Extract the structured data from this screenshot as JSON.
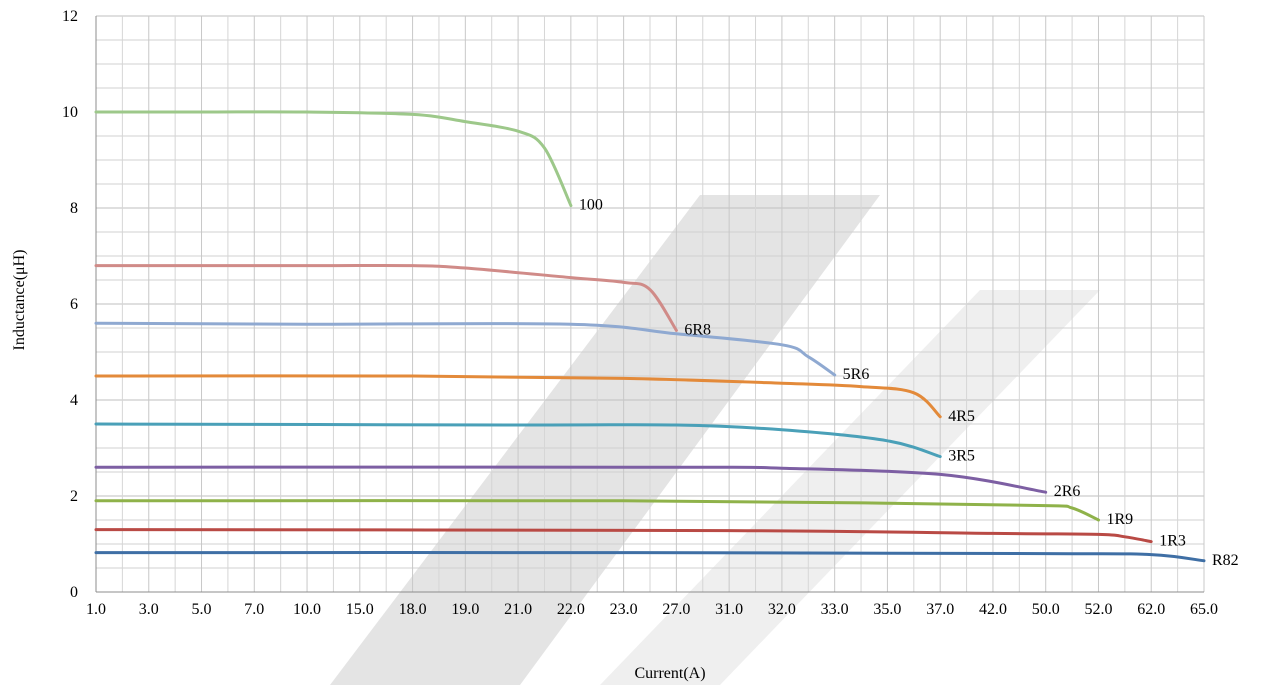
{
  "chart_data": {
    "type": "line",
    "title": "",
    "xlabel": "Current(A)",
    "ylabel": "Inductance(μH)",
    "ylim": [
      0,
      12
    ],
    "yticks": [
      "0",
      "2",
      "4",
      "6",
      "8",
      "10",
      "12"
    ],
    "categories": [
      "1.0",
      "3.0",
      "5.0",
      "7.0",
      "10.0",
      "15.0",
      "18.0",
      "19.0",
      "21.0",
      "22.0",
      "23.0",
      "27.0",
      "31.0",
      "32.0",
      "33.0",
      "35.0",
      "37.0",
      "42.0",
      "50.0",
      "52.0",
      "62.0",
      "65.0"
    ],
    "grid": true,
    "legend": "none",
    "series": [
      {
        "name": "100",
        "color": "#9dc88a",
        "x": [
          0,
          2,
          4,
          6,
          7,
          8,
          8.5,
          9
        ],
        "values": [
          10.0,
          10.0,
          10.0,
          9.95,
          9.8,
          9.6,
          9.25,
          8.05
        ]
      },
      {
        "name": "6R8",
        "color": "#d08b88",
        "x": [
          0,
          4,
          6,
          7,
          9,
          10,
          10.5,
          11
        ],
        "values": [
          6.8,
          6.8,
          6.8,
          6.75,
          6.55,
          6.45,
          6.3,
          5.45
        ]
      },
      {
        "name": "5R6",
        "color": "#8fa9d1",
        "x": [
          0,
          4,
          9,
          11,
          13,
          13.5,
          14
        ],
        "values": [
          5.6,
          5.58,
          5.58,
          5.38,
          5.15,
          4.9,
          4.52
        ]
      },
      {
        "name": "4R5",
        "color": "#e38a3a",
        "x": [
          0,
          6,
          10,
          13,
          14.5,
          15.5,
          16
        ],
        "values": [
          4.5,
          4.5,
          4.45,
          4.35,
          4.28,
          4.15,
          3.65
        ]
      },
      {
        "name": "3R5",
        "color": "#4aa0b8",
        "x": [
          0,
          8,
          11,
          13,
          15,
          16
        ],
        "values": [
          3.5,
          3.48,
          3.48,
          3.38,
          3.15,
          2.82
        ]
      },
      {
        "name": "2R6",
        "color": "#7d5fa3",
        "x": [
          0,
          11,
          13,
          16,
          18
        ],
        "values": [
          2.6,
          2.6,
          2.58,
          2.45,
          2.08
        ]
      },
      {
        "name": "1R9",
        "color": "#8fb24a",
        "x": [
          0,
          10,
          15,
          18,
          18.5,
          19
        ],
        "values": [
          1.9,
          1.9,
          1.85,
          1.8,
          1.75,
          1.5
        ]
      },
      {
        "name": "1R3",
        "color": "#b94a45",
        "x": [
          0,
          12,
          17,
          19,
          19.5,
          20
        ],
        "values": [
          1.3,
          1.28,
          1.22,
          1.2,
          1.15,
          1.05
        ]
      },
      {
        "name": "R82",
        "color": "#3f6fa5",
        "x": [
          0,
          10,
          18,
          20,
          21
        ],
        "values": [
          0.82,
          0.82,
          0.8,
          0.78,
          0.65
        ]
      }
    ]
  }
}
